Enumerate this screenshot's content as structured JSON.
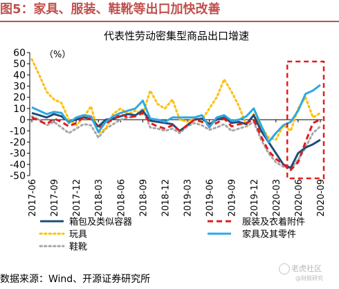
{
  "figure_label": "图5：家具、服装、鞋靴等出口加快改善",
  "source_note": "数据来源：Wind、开源证券研究所",
  "watermark": {
    "line1": "老虎社区",
    "line2": "@财报研究"
  },
  "colors": {
    "figure_label": "#c0504d",
    "highlight_box": "#e31a1c"
  },
  "chart_data": {
    "type": "line",
    "title": "代表性劳动密集型商品出口增速",
    "unit_label": "（%）",
    "xlabel": "",
    "ylabel": "",
    "ylim": [
      -50,
      60
    ],
    "yticks": [
      60,
      50,
      40,
      30,
      20,
      10,
      0,
      -10,
      -20,
      -30,
      -40,
      -50
    ],
    "x": [
      "2017-06",
      "2017-07",
      "2017-08",
      "2017-09",
      "2017-10",
      "2017-11",
      "2017-12",
      "2018-01",
      "2018-02",
      "2018-03",
      "2018-04",
      "2018-05",
      "2018-06",
      "2018-07",
      "2018-08",
      "2018-09",
      "2018-10",
      "2018-11",
      "2018-12",
      "2019-01",
      "2019-02",
      "2019-03",
      "2019-04",
      "2019-05",
      "2019-06",
      "2019-07",
      "2019-08",
      "2019-09",
      "2019-10",
      "2019-11",
      "2019-12",
      "2020-01",
      "2020-02",
      "2020-03",
      "2020-04",
      "2020-05",
      "2020-06",
      "2020-07",
      "2020-08",
      "2020-09"
    ],
    "xtick_labels": [
      "2017-06",
      "2017-09",
      "2017-12",
      "2018-03",
      "2018-06",
      "2018-09",
      "2018-12",
      "2019-03",
      "2019-06",
      "2019-09",
      "2019-12",
      "2020-03",
      "2020-06",
      "2020-09"
    ],
    "grid": false,
    "legend_placement": "bottom",
    "highlight": {
      "x_from": "2020-05",
      "x_to": "2020-09",
      "y_from": -50,
      "y_to": 52
    },
    "series": [
      {
        "name": "箱包及类似容器",
        "color": "#1f4e79",
        "dash": "solid",
        "width": 3,
        "values": [
          6,
          4,
          2,
          5,
          3,
          -2,
          0,
          2,
          1,
          -6,
          0,
          1,
          3,
          5,
          4,
          8,
          -1,
          -2,
          -3,
          -4,
          -10,
          -5,
          0,
          1,
          -4,
          0,
          2,
          -3,
          -2,
          -4,
          4,
          -10,
          -20,
          -30,
          -40,
          -43,
          -30,
          -25,
          -22,
          -18
        ]
      },
      {
        "name": "服装及衣着附件",
        "color": "#e31a1c",
        "dash": "dashed",
        "width": 3,
        "values": [
          2,
          -1,
          -4,
          1,
          -2,
          -6,
          -3,
          2,
          1,
          -8,
          -3,
          0,
          5,
          2,
          3,
          6,
          -3,
          -6,
          -8,
          -5,
          -10,
          -5,
          0,
          -2,
          -5,
          -3,
          1,
          -6,
          -4,
          -3,
          0,
          -15,
          -28,
          -35,
          -40,
          -45,
          -38,
          -20,
          -3,
          0
        ]
      },
      {
        "name": "玩具",
        "color": "#ffc000",
        "dash": "dotted",
        "width": 3,
        "values": [
          54,
          40,
          25,
          18,
          15,
          0,
          -5,
          2,
          12,
          -12,
          -8,
          5,
          10,
          5,
          8,
          5,
          26,
          14,
          10,
          18,
          0,
          -2,
          1,
          0,
          10,
          20,
          36,
          25,
          12,
          -5,
          5,
          -6,
          -16,
          -18,
          -5,
          -10,
          10,
          20,
          2,
          6
        ]
      },
      {
        "name": "家具及其零件",
        "color": "#2ea8e0",
        "dash": "solid",
        "width": 3,
        "values": [
          11,
          8,
          5,
          7,
          6,
          -3,
          2,
          4,
          3,
          -11,
          -2,
          3,
          6,
          8,
          10,
          17,
          1,
          0,
          -2,
          2,
          2,
          2,
          2,
          4,
          -7,
          2,
          4,
          -1,
          0,
          3,
          10,
          -5,
          -20,
          -12,
          -5,
          -2,
          8,
          23,
          26,
          31
        ]
      },
      {
        "name": "鞋靴",
        "color": "#a6a6a6",
        "dash": "dotted",
        "width": 3,
        "values": [
          3,
          0,
          -5,
          -2,
          -7,
          -12,
          -8,
          -4,
          -5,
          -16,
          -8,
          -4,
          0,
          2,
          3,
          10,
          -7,
          -8,
          -10,
          -8,
          -12,
          -6,
          -3,
          -5,
          -9,
          -7,
          -4,
          -10,
          -8,
          -6,
          -2,
          -18,
          -30,
          -38,
          -42,
          -44,
          -36,
          -25,
          -12,
          -6
        ]
      }
    ]
  }
}
